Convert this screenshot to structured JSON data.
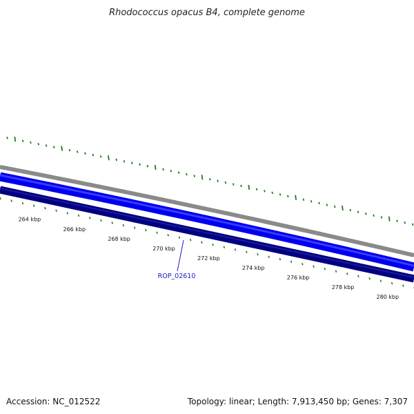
{
  "title": "Rhodococcus opacus B4, complete genome",
  "footer": {
    "accession": "Accession: NC_012522",
    "summary": "Topology: linear; Length: 7,913,450 bp; Genes: 7,307"
  },
  "colors": {
    "gene_tick": "#1e7a1e",
    "backbone_outer": "#8a8a8a",
    "forward_strand": "#0000ee",
    "reverse_strand": "#000080",
    "scale_tick": "#1e7a1e",
    "gene_label": "#1a1ac8"
  },
  "scale_labels": [
    {
      "text": "264 kbp",
      "kbp": 264
    },
    {
      "text": "266 kbp",
      "kbp": 266
    },
    {
      "text": "268 kbp",
      "kbp": 268
    },
    {
      "text": "270 kbp",
      "kbp": 270
    },
    {
      "text": "272 kbp",
      "kbp": 272
    },
    {
      "text": "274 kbp",
      "kbp": 274
    },
    {
      "text": "276 kbp",
      "kbp": 276
    },
    {
      "text": "278 kbp",
      "kbp": 278
    },
    {
      "text": "280 kbp",
      "kbp": 280
    }
  ],
  "gene": {
    "name": "ROP_02610",
    "kbp": 271.4
  }
}
